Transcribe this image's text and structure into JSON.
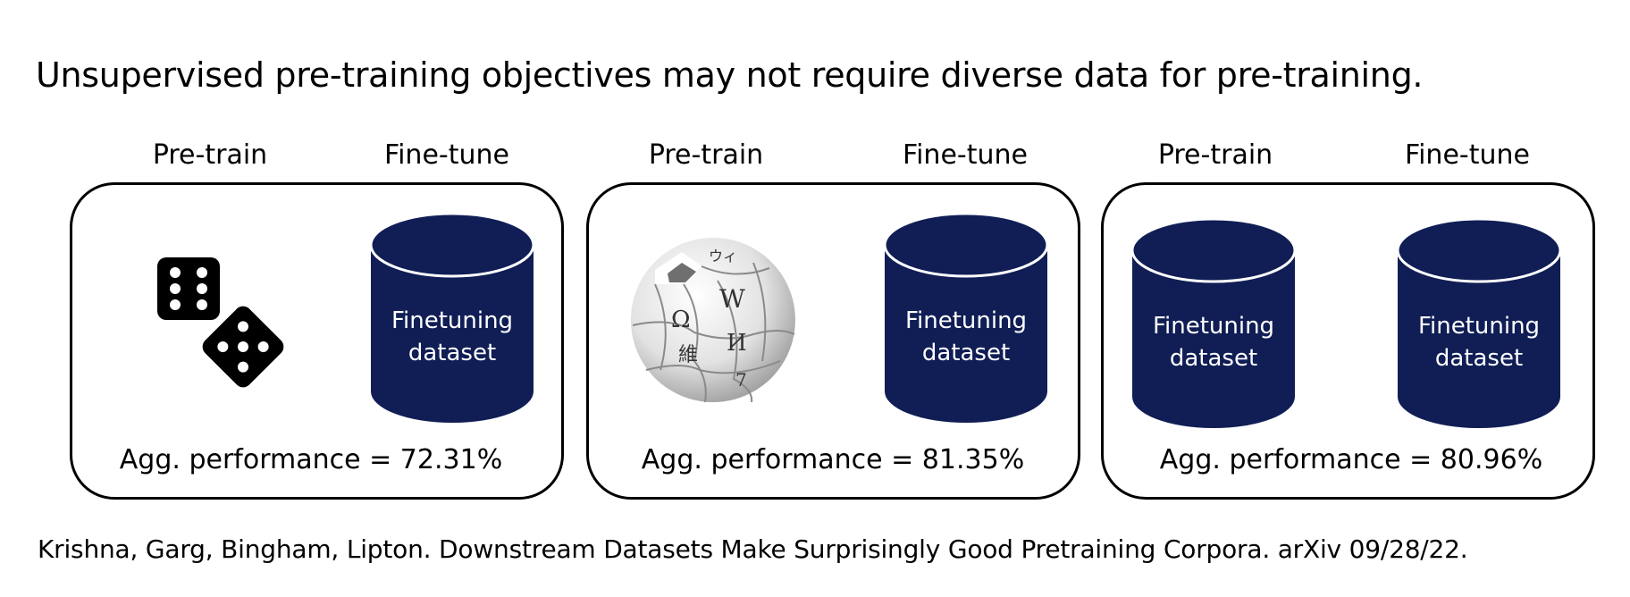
{
  "title": "Unsupervised pre-training objectives may not require diverse data for pre-training.",
  "panels": [
    {
      "pretrain_label": "Pre-train",
      "finetune_label": "Fine-tune",
      "pretrain_icon": "dice-icon",
      "finetune_dataset": [
        "Finetuning",
        "dataset"
      ],
      "performance": "Agg. performance = 72.31%"
    },
    {
      "pretrain_label": "Pre-train",
      "finetune_label": "Fine-tune",
      "pretrain_icon": "wikipedia-globe-icon",
      "finetune_dataset": [
        "Finetuning",
        "dataset"
      ],
      "performance": "Agg. performance = 81.35%"
    },
    {
      "pretrain_label": "Pre-train",
      "finetune_label": "Fine-tune",
      "pretrain_dataset": [
        "Finetuning",
        "dataset"
      ],
      "finetune_dataset": [
        "Finetuning",
        "dataset"
      ],
      "performance": "Agg. performance = 80.96%"
    }
  ],
  "citation": "Krishna, Garg, Bingham, Lipton. Downstream Datasets Make Surprisingly Good Pretraining Corpora. arXiv 09/28/22.",
  "colors": {
    "cylinder": "#101e55",
    "border": "#000000"
  }
}
